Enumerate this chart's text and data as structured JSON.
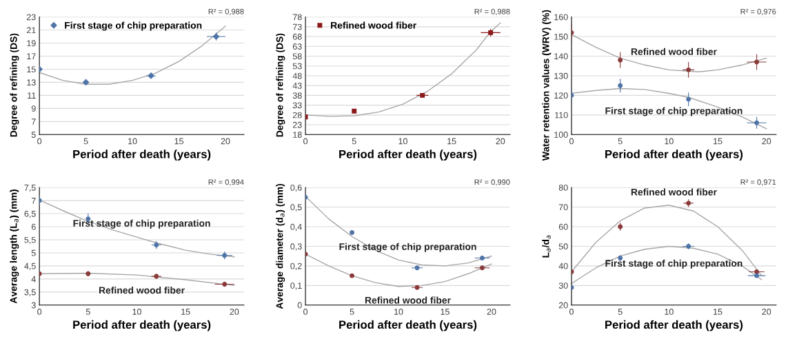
{
  "chart_data": [
    {
      "type": "scatter",
      "xlabel": "Period after death (years)",
      "ylabel": "Degree of refining (DS)",
      "x": [
        0,
        5,
        12,
        19
      ],
      "xlim": [
        0,
        22
      ],
      "xticks": [
        0,
        5,
        10,
        15,
        20
      ],
      "ylim": [
        5,
        23
      ],
      "yticks": [
        5,
        7,
        9,
        11,
        13,
        15,
        17,
        19,
        21,
        23
      ],
      "grid": "y",
      "legend": "top left",
      "annotations": [
        "R² = 0,988"
      ],
      "series": [
        {
          "name": "First stage of chip preparation",
          "marker": "diamond",
          "color": "#4f74a8",
          "values": [
            15,
            13,
            14,
            20
          ],
          "errors": [
            0.4,
            0.4,
            0.4,
            0.6
          ],
          "xerrors": [
            null,
            null,
            0.5,
            1
          ]
        },
        {
          "type": "line",
          "color": "#a6a6a6",
          "x": [
            0,
            2.5,
            5,
            7.5,
            10,
            12.5,
            15,
            17.5,
            20
          ],
          "values": [
            14.5,
            13.3,
            12.7,
            12.7,
            13.3,
            14.4,
            16.2,
            18.6,
            21.6
          ]
        }
      ]
    },
    {
      "type": "scatter",
      "xlabel": "Period after death (years)",
      "ylabel": "Degree of refining (DS)",
      "x": [
        0,
        5,
        12,
        19
      ],
      "xlim": [
        0,
        21
      ],
      "xticks": [
        0,
        5,
        10,
        15,
        20
      ],
      "ylim": [
        18,
        78
      ],
      "yticks": [
        18,
        23,
        28,
        33,
        38,
        43,
        48,
        53,
        58,
        63,
        68,
        73,
        78
      ],
      "grid": "y",
      "legend": "top left",
      "annotations": [
        "R² = 0,988"
      ],
      "series": [
        {
          "name": "Refined wood fiber",
          "marker": "square",
          "color": "#8b1a1a",
          "values": [
            27,
            30,
            38,
            70
          ],
          "errors": [
            null,
            null,
            null,
            2
          ],
          "xerrors": [
            null,
            null,
            0.6,
            1
          ]
        },
        {
          "type": "line",
          "color": "#a6a6a6",
          "x": [
            0,
            2.5,
            5,
            7.5,
            10,
            12.5,
            15,
            17.5,
            19,
            20
          ],
          "values": [
            28,
            27.3,
            27.6,
            29.5,
            33.5,
            40,
            49,
            61,
            70.5,
            75
          ]
        }
      ]
    },
    {
      "type": "scatter",
      "xlabel": "Period after death (years)",
      "ylabel": "Water retention values (WRV) (%)",
      "x": [
        0,
        5,
        12,
        19
      ],
      "xlim": [
        0,
        21
      ],
      "xticks": [
        0,
        5,
        10,
        15,
        20
      ],
      "ylim": [
        100,
        160
      ],
      "yticks": [
        100,
        110,
        120,
        130,
        140,
        150,
        160
      ],
      "grid": "y",
      "annotations": [
        "R² = 0,976"
      ],
      "series": [
        {
          "name": "Refined wood fiber",
          "marker": "circle",
          "color": "#8b3a3a",
          "values": [
            152,
            138,
            133,
            137
          ],
          "errors": [
            4.5,
            4,
            4,
            4
          ],
          "xerrors": [
            null,
            null,
            0.6,
            1
          ]
        },
        {
          "name": "First stage of chip preparation",
          "marker": "circle",
          "color": "#4f74a8",
          "values": [
            120,
            125,
            118,
            106
          ],
          "errors": [
            3.5,
            3.5,
            3.5,
            3
          ],
          "xerrors": [
            null,
            null,
            null,
            1
          ]
        },
        {
          "type": "line",
          "color": "#a6a6a6",
          "x": [
            0,
            2.5,
            5,
            7.5,
            10,
            13,
            15,
            17.5,
            20
          ],
          "values": [
            151,
            144.5,
            139,
            135.5,
            133,
            132,
            133,
            135.5,
            139
          ]
        },
        {
          "type": "line",
          "color": "#a6a6a6",
          "x": [
            0,
            2.5,
            5,
            7.5,
            10,
            12,
            15,
            17.5,
            20
          ],
          "values": [
            121,
            122.5,
            123.5,
            123,
            121,
            119,
            114,
            109,
            103
          ]
        }
      ]
    },
    {
      "type": "scatter",
      "xlabel": "Period after death (years)",
      "ylabel": "Average length (L$_{a}$) (mm)",
      "x": [
        0,
        5,
        12,
        19
      ],
      "xlim": [
        0,
        21
      ],
      "xticks": [
        0,
        5,
        10,
        15,
        20
      ],
      "ylim": [
        3,
        7.5
      ],
      "yticks": [
        3,
        {
          "value": 3.5,
          "label": "3,5"
        },
        4,
        {
          "value": 4.5,
          "label": "4,5"
        },
        5,
        {
          "value": 5.5,
          "label": "5,5"
        },
        6,
        {
          "value": 6.5,
          "label": "6,5"
        },
        7,
        {
          "value": 7.5,
          "label": "7,5"
        }
      ],
      "grid": "y",
      "annotations": [
        "R² = 0,994"
      ],
      "series": [
        {
          "name": "First stage of chip preparation",
          "marker": "circle",
          "color": "#4f74a8",
          "values": [
            7,
            6.3,
            5.3,
            4.9
          ],
          "errors": [
            0.2,
            0.2,
            0.15,
            0.15
          ],
          "xerrors": [
            null,
            null,
            0.5,
            0.8
          ]
        },
        {
          "name": "Refined wood fiber",
          "marker": "circle",
          "color": "#8b3a3a",
          "values": [
            4.2,
            4.2,
            4.1,
            3.8
          ],
          "errors": [
            0.1,
            0.1,
            0.1,
            0.1
          ],
          "xerrors": [
            null,
            null,
            0.5,
            1
          ]
        },
        {
          "type": "line",
          "color": "#a6a6a6",
          "x": [
            0,
            2.5,
            5,
            7.5,
            10,
            12,
            15,
            17.5,
            20
          ],
          "values": [
            7.02,
            6.6,
            6.2,
            5.88,
            5.6,
            5.38,
            5.1,
            4.95,
            4.85
          ]
        },
        {
          "type": "line",
          "color": "#a6a6a6",
          "x": [
            0,
            5,
            10,
            15,
            20
          ],
          "values": [
            4.2,
            4.22,
            4.15,
            3.97,
            3.75
          ]
        }
      ]
    },
    {
      "type": "scatter",
      "xlabel": "Period after death (years)",
      "ylabel": "Average diameter (d$_{a}$) (mm)",
      "x": [
        0,
        5,
        12,
        19
      ],
      "xlim": [
        0,
        22
      ],
      "xticks": [
        0,
        5,
        10,
        15,
        20
      ],
      "ylim": [
        0,
        0.6
      ],
      "yticks": [
        0,
        {
          "value": 0.1,
          "label": "0,1"
        },
        {
          "value": 0.2,
          "label": "0,2"
        },
        {
          "value": 0.3,
          "label": "0,3"
        },
        {
          "value": 0.4,
          "label": "0,4"
        },
        {
          "value": 0.5,
          "label": "0,5"
        },
        {
          "value": 0.6,
          "label": "0,6"
        }
      ],
      "grid": "y",
      "annotations": [
        "R² = 0,990"
      ],
      "series": [
        {
          "name": "First stage of chip preparation",
          "marker": "circle",
          "color": "#4f74a8",
          "values": [
            0.55,
            0.37,
            0.19,
            0.24
          ],
          "errors": [
            0.02,
            0.01,
            null,
            null
          ],
          "xerrors": [
            null,
            null,
            0.6,
            0.8
          ]
        },
        {
          "name": "Refined wood fiber",
          "marker": "circle",
          "color": "#8b3a3a",
          "values": [
            0.26,
            0.15,
            0.09,
            0.19
          ],
          "errors": [
            null,
            null,
            null,
            null
          ],
          "xerrors": [
            null,
            null,
            0.6,
            0.8
          ]
        },
        {
          "type": "line",
          "color": "#a6a6a6",
          "x": [
            0,
            2.5,
            5,
            7.5,
            10,
            12.5,
            15,
            17.5,
            20
          ],
          "values": [
            0.555,
            0.44,
            0.35,
            0.28,
            0.23,
            0.205,
            0.2,
            0.215,
            0.25
          ]
        },
        {
          "type": "line",
          "color": "#a6a6a6",
          "x": [
            0,
            2.5,
            5,
            7.5,
            10,
            12.5,
            15,
            17.5,
            20
          ],
          "values": [
            0.26,
            0.2,
            0.15,
            0.115,
            0.095,
            0.1,
            0.12,
            0.16,
            0.21
          ]
        }
      ]
    },
    {
      "type": "scatter",
      "xlabel": "Period after death (years)",
      "ylabel": "L$_{a}$/d$_{a}$",
      "x": [
        0,
        5,
        12,
        19
      ],
      "xlim": [
        0,
        21
      ],
      "xticks": [
        0,
        5,
        10,
        15,
        20
      ],
      "ylim": [
        20,
        80
      ],
      "yticks": [
        20,
        30,
        40,
        50,
        60,
        70,
        80
      ],
      "grid": "y",
      "annotations": [
        "R² = 0,971"
      ],
      "series": [
        {
          "name": "Refined wood fiber",
          "marker": "circle",
          "color": "#8b3a3a",
          "values": [
            37,
            60,
            72,
            37
          ],
          "errors": [
            null,
            2,
            2,
            null
          ],
          "xerrors": [
            null,
            null,
            0.5,
            0.8
          ]
        },
        {
          "name": "First stage of chip preparation",
          "marker": "circle",
          "color": "#4f74a8",
          "values": [
            29,
            44,
            50,
            35
          ],
          "errors": [
            null,
            1.5,
            1.5,
            null
          ],
          "xerrors": [
            null,
            null,
            0.6,
            0.9
          ]
        },
        {
          "type": "line",
          "color": "#a6a6a6",
          "x": [
            0,
            2.5,
            5,
            7.5,
            10,
            12.5,
            15,
            17.5,
            19.5
          ],
          "values": [
            37,
            52,
            63,
            69.5,
            71,
            68,
            60,
            48,
            35
          ]
        },
        {
          "type": "line",
          "color": "#a6a6a6",
          "x": [
            0,
            2.5,
            5,
            7.5,
            10,
            12.5,
            15,
            17.5,
            19.5
          ],
          "values": [
            31,
            39,
            45,
            48.5,
            50,
            49,
            46,
            40,
            33
          ]
        }
      ]
    }
  ]
}
